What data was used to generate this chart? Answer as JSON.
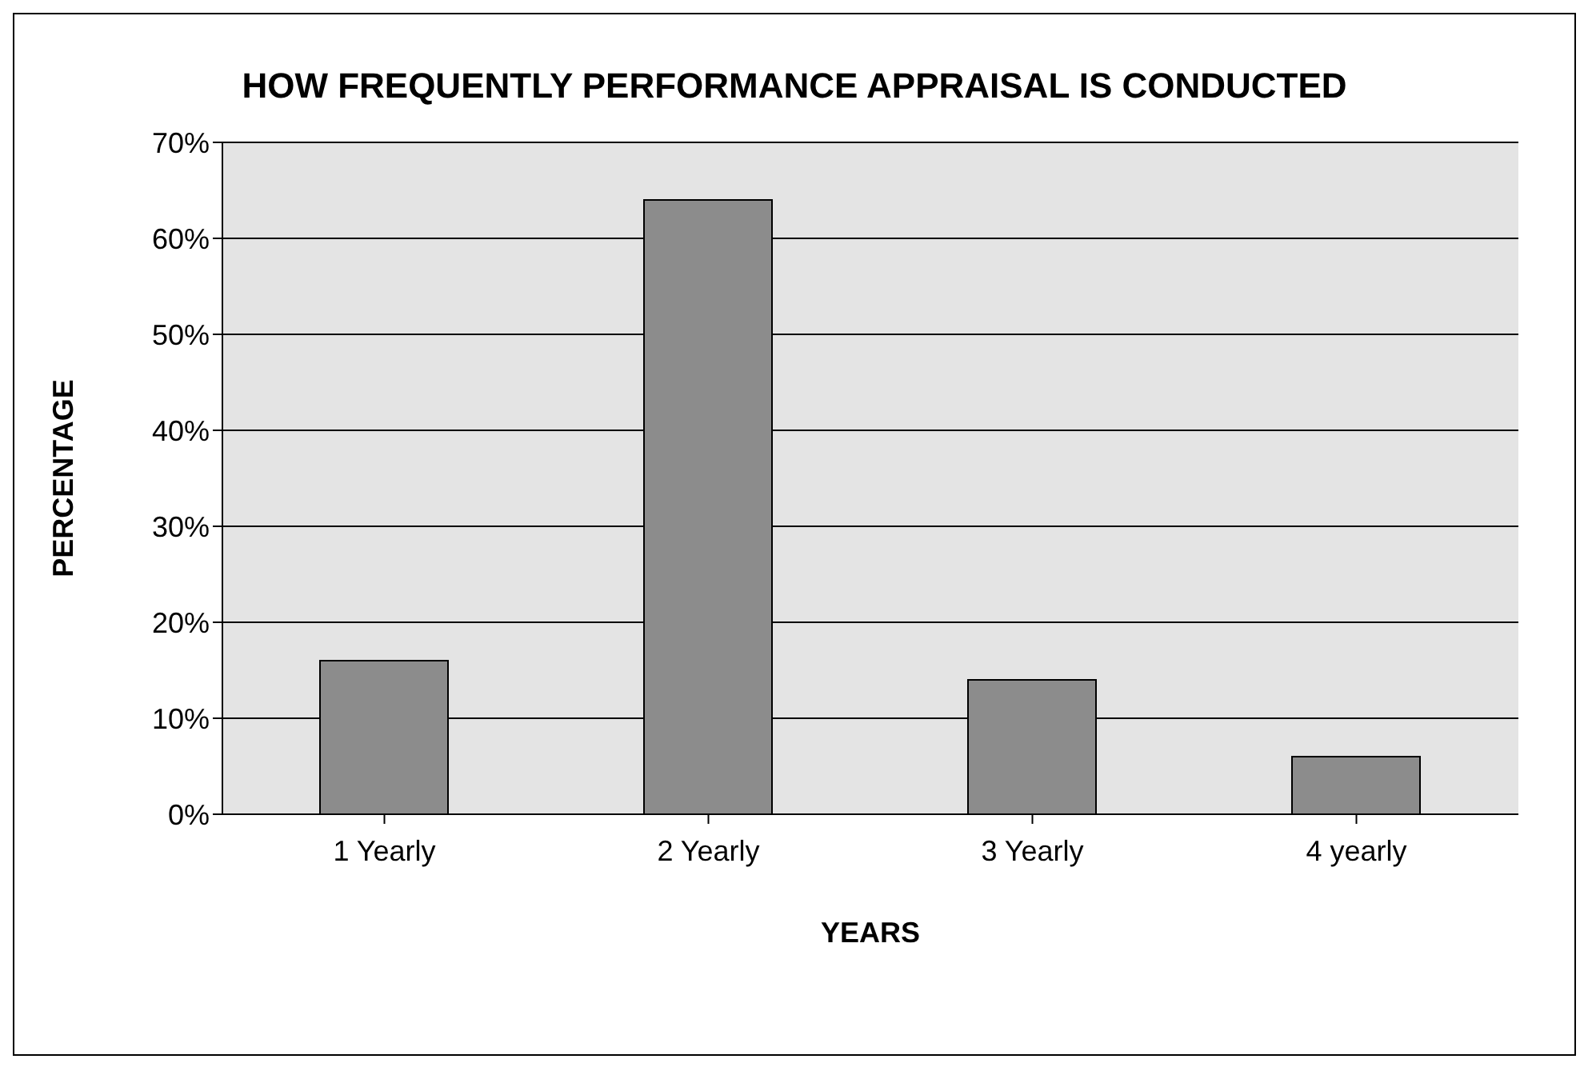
{
  "chart_data": {
    "type": "bar",
    "title": "HOW FREQUENTLY PERFORMANCE APPRAISAL IS CONDUCTED",
    "xlabel": "YEARS",
    "ylabel": "PERCENTAGE",
    "categories": [
      "1 Yearly",
      "2 Yearly",
      "3 Yearly",
      "4 yearly"
    ],
    "values": [
      16,
      64,
      14,
      6
    ],
    "color": "#8c8c8c",
    "ylim": [
      0,
      70
    ],
    "yticks": [
      {
        "value": 0,
        "label": "0%"
      },
      {
        "value": 10,
        "label": "10%"
      },
      {
        "value": 20,
        "label": "20%"
      },
      {
        "value": 30,
        "label": "30%"
      },
      {
        "value": 40,
        "label": "40%"
      },
      {
        "value": 50,
        "label": "50%"
      },
      {
        "value": 60,
        "label": "60%"
      },
      {
        "value": 70,
        "label": "70%"
      }
    ],
    "grid": "y",
    "legend": false
  }
}
